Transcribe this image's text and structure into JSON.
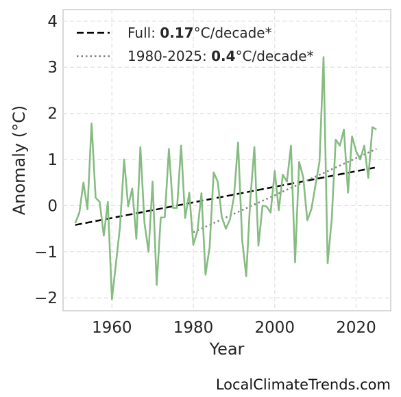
{
  "chart_data": {
    "type": "line",
    "xlabel": "Year",
    "ylabel": "Anomaly (°C)",
    "xlim": [
      1948,
      2028.5
    ],
    "ylim": [
      -2.28,
      4.25
    ],
    "x_ticks": [
      1960,
      1980,
      2000,
      2020
    ],
    "x_tick_labels": [
      "1960",
      "1980",
      "2000",
      "2020"
    ],
    "y_ticks": [
      -2,
      -1,
      0,
      1,
      2,
      3,
      4
    ],
    "y_tick_labels": [
      "−2",
      "−1",
      "0",
      "1",
      "2",
      "3",
      "4"
    ],
    "grid": true,
    "legend_position": "top-left",
    "colors": {
      "series": "#86bc82",
      "full_trend": "#000000",
      "recent_trend": "#808080"
    },
    "series": [
      {
        "x": [
          1951,
          1952,
          1953,
          1954,
          1955,
          1956,
          1957,
          1958,
          1959,
          1960,
          1961,
          1962,
          1963,
          1964,
          1965,
          1966,
          1967,
          1968,
          1969,
          1970,
          1971,
          1972,
          1973,
          1974,
          1975,
          1976,
          1977,
          1978,
          1979,
          1980,
          1981,
          1982,
          1983,
          1984,
          1985,
          1986,
          1987,
          1988,
          1989,
          1990,
          1991,
          1992,
          1993,
          1994,
          1995,
          1996,
          1997,
          1998,
          1999,
          2000,
          2001,
          2002,
          2003,
          2004,
          2005,
          2006,
          2007,
          2008,
          2009,
          2010,
          2011,
          2012,
          2013,
          2014,
          2015,
          2016,
          2017,
          2018,
          2019,
          2020,
          2021,
          2022,
          2023,
          2024,
          2025
        ],
        "values": [
          -0.38,
          -0.15,
          0.5,
          -0.08,
          1.78,
          0.17,
          0.08,
          -0.65,
          0.08,
          -2.03,
          -1.25,
          -0.45,
          1.0,
          -0.02,
          0.37,
          -0.72,
          1.27,
          -0.38,
          -1.0,
          0.52,
          -1.72,
          -0.26,
          -0.25,
          1.23,
          -0.05,
          -0.05,
          1.3,
          -0.27,
          0.28,
          -0.85,
          -0.55,
          0.27,
          -1.5,
          -0.9,
          0.72,
          0.52,
          -0.25,
          -0.5,
          -0.3,
          0.2,
          1.37,
          -0.75,
          -1.53,
          0.12,
          1.27,
          -0.87,
          0.0,
          -0.02,
          -0.15,
          0.75,
          -0.1,
          0.67,
          0.52,
          1.3,
          -1.23,
          0.95,
          0.62,
          -0.32,
          -0.08,
          0.43,
          0.95,
          3.22,
          -1.25,
          -0.3,
          1.43,
          1.3,
          1.65,
          0.28,
          1.5,
          1.18,
          1.0,
          1.3,
          0.6,
          1.7,
          1.65
        ]
      }
    ],
    "trend_lines": [
      {
        "name_prefix": "Full: ",
        "name_value": "0.17",
        "name_suffix": "°C/decade*",
        "x": [
          1951,
          2025
        ],
        "values": [
          -0.42,
          0.83
        ],
        "style": "dashed"
      },
      {
        "name_prefix": "1980-2025: ",
        "name_value": "0.4",
        "name_suffix": "°C/decade*",
        "x": [
          1980,
          2025
        ],
        "values": [
          -0.58,
          1.23
        ],
        "style": "dotted"
      }
    ]
  },
  "credit": "LocalClimateTrends.com"
}
